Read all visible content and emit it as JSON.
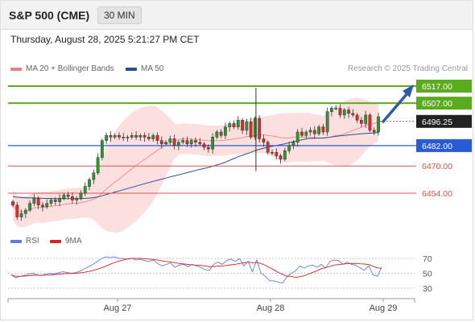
{
  "header": {
    "symbol": "S&P 500 (CME)",
    "timeframe": "30 MIN"
  },
  "datetime": "Thursday, August 28, 2025 5:21:27 PM CET",
  "legend": {
    "bb_label": "MA 20 + Bollinger Bands",
    "ma50_label": "MA 50",
    "bb_color": "#f08080",
    "ma50_color": "#2a4f8f"
  },
  "credit": "Research © 2025 Trading Central",
  "rsi_legend": {
    "rsi_label": "RSI",
    "ma_label": "9MA",
    "rsi_color": "#5b7fd6",
    "ma_color": "#e02020"
  },
  "x_labels": [
    "Aug 27",
    "Aug 28",
    "Aug 29"
  ],
  "rsi_ticks": [
    "70",
    "50",
    "30"
  ],
  "colors": {
    "resistance": "#5aab1e",
    "pivot": "#2a5bd7",
    "support": "#e05050",
    "current": "#222222",
    "band_fill": "#fbd9d9",
    "up_candle": "#2e9a2e",
    "down_candle": "#d83030",
    "arrow": "#2a5aa8"
  },
  "chart_data": [
    {
      "type": "candlestick",
      "title": "S&P 500 (CME)",
      "timeframe": "30 MIN",
      "x_labels": [
        "Aug 27",
        "Aug 28",
        "Aug 29"
      ],
      "levels": [
        {
          "value": 6517.0,
          "label": "6517.00",
          "kind": "resistance"
        },
        {
          "value": 6507.0,
          "label": "6507.00",
          "kind": "resistance"
        },
        {
          "value": 6496.25,
          "label": "6496.25",
          "kind": "current"
        },
        {
          "value": 6482.0,
          "label": "6482.00",
          "kind": "pivot"
        },
        {
          "value": 6470.0,
          "label": "6470.00",
          "kind": "support"
        },
        {
          "value": 6454.0,
          "label": "6454.00",
          "kind": "support"
        }
      ],
      "close": [
        6447,
        6440,
        6442,
        6444,
        6448,
        6451,
        6447,
        6446,
        6448,
        6450,
        6449,
        6451,
        6453,
        6452,
        6450,
        6451,
        6454,
        6458,
        6462,
        6466,
        6475,
        6485,
        6488,
        6487,
        6488,
        6487,
        6487,
        6487,
        6488,
        6487,
        6488,
        6487,
        6486,
        6488,
        6485,
        6483,
        6484,
        6486,
        6482,
        6484,
        6485,
        6483,
        6485,
        6484,
        6483,
        6481,
        6480,
        6487,
        6490,
        6488,
        6493,
        6495,
        6493,
        6497,
        6491,
        6496,
        6487,
        6498,
        6486,
        6484,
        6478,
        6478,
        6476,
        6474,
        6479,
        6482,
        6484,
        6490,
        6488,
        6490,
        6491,
        6489,
        6493,
        6490,
        6502,
        6504,
        6504,
        6500,
        6503,
        6501,
        6500,
        6497,
        6495,
        6500,
        6491,
        6490,
        6499
      ]
    },
    {
      "type": "line",
      "title": "RSI",
      "series": [
        {
          "name": "RSI"
        },
        {
          "name": "9MA"
        }
      ],
      "y_ticks": [
        70,
        50,
        30
      ],
      "rsi": [
        48,
        44,
        46,
        47,
        49,
        50,
        48,
        47,
        49,
        50,
        49,
        51,
        52,
        51,
        50,
        51,
        53,
        56,
        59,
        62,
        66,
        70,
        72,
        71,
        72,
        70,
        70,
        69,
        70,
        68,
        69,
        67,
        66,
        68,
        63,
        60,
        62,
        64,
        58,
        61,
        62,
        59,
        62,
        60,
        58,
        55,
        54,
        62,
        65,
        62,
        67,
        69,
        66,
        70,
        60,
        66,
        52,
        68,
        50,
        46,
        40,
        40,
        38,
        37,
        45,
        50,
        53,
        60,
        57,
        60,
        61,
        58,
        62,
        57,
        66,
        68,
        67,
        62,
        65,
        62,
        61,
        57,
        54,
        60,
        48,
        46,
        58
      ],
      "ylim": [
        30,
        75
      ]
    }
  ]
}
